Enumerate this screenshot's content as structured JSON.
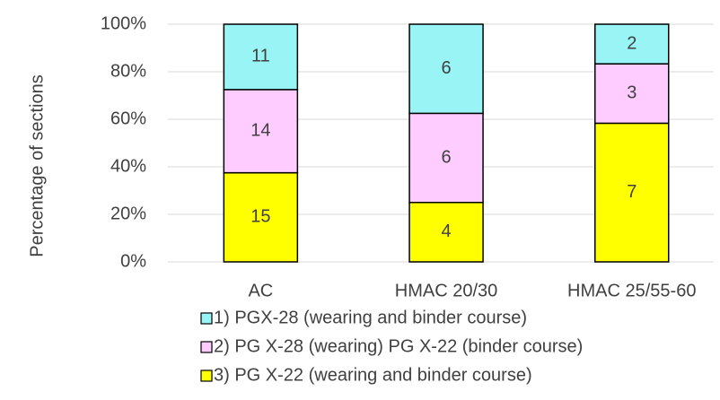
{
  "chart_data": {
    "type": "bar",
    "stacking": "percent",
    "y_axis_label": "Percentage of sections",
    "categories": [
      "AC",
      "HMAC 20/30",
      "HMAC 25/55-60"
    ],
    "series": [
      {
        "name": "1) PGX-28 (wearing and binder course)",
        "color": "#99f5f5",
        "values": [
          11,
          6,
          2
        ]
      },
      {
        "name": "2) PG X-28 (wearing) PG X-22 (binder course)",
        "color": "#ffccff",
        "values": [
          14,
          6,
          3
        ]
      },
      {
        "name": "3) PG X-22 (wearing and binder course)",
        "color": "#ffff00",
        "values": [
          15,
          4,
          7
        ]
      }
    ],
    "ylim": [
      0,
      100
    ],
    "yticks": [
      {
        "value": 0,
        "label": "0%"
      },
      {
        "value": 20,
        "label": "20%"
      },
      {
        "value": 40,
        "label": "40%"
      },
      {
        "value": 60,
        "label": "60%"
      },
      {
        "value": 80,
        "label": "80%"
      },
      {
        "value": 100,
        "label": "100%"
      }
    ],
    "grid": true
  }
}
